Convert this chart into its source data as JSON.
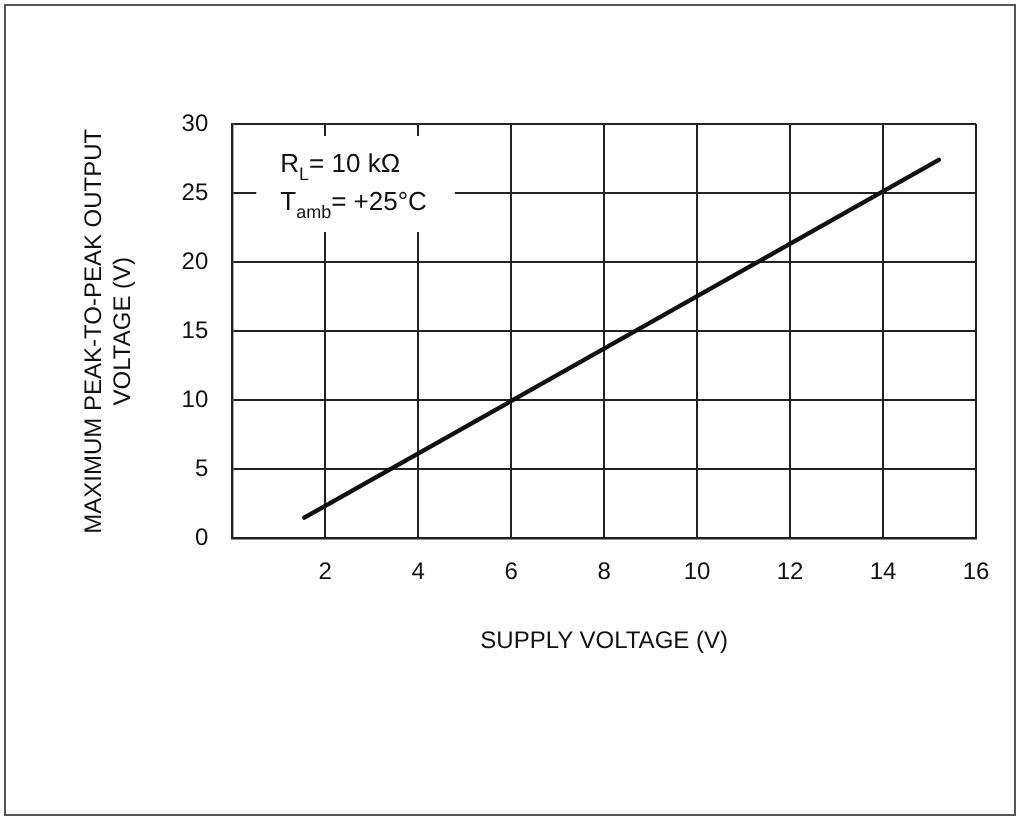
{
  "chart_data": {
    "type": "line",
    "xlabel": "SUPPLY VOLTAGE (V)",
    "ylabel": "MAXIMUM PEAK-TO-PEAK OUTPUT VOLTAGE (V)",
    "annotations": [
      "R$_{L}$= 10 kΩ",
      "T$_{amb}$= +25°C"
    ],
    "x": [
      1.55,
      15.2
    ],
    "series": [
      {
        "color": "#111111",
        "values": [
          1.5,
          27.4
        ]
      }
    ],
    "xlim": [
      0,
      16
    ],
    "ylim": [
      0,
      30
    ],
    "xticks": [
      2,
      4,
      6,
      8,
      10,
      12,
      14,
      16
    ],
    "yticks": [
      0,
      5,
      10,
      15,
      20,
      25,
      30
    ],
    "grid": true,
    "legend": false,
    "marker": "none",
    "line_style": "solid"
  }
}
